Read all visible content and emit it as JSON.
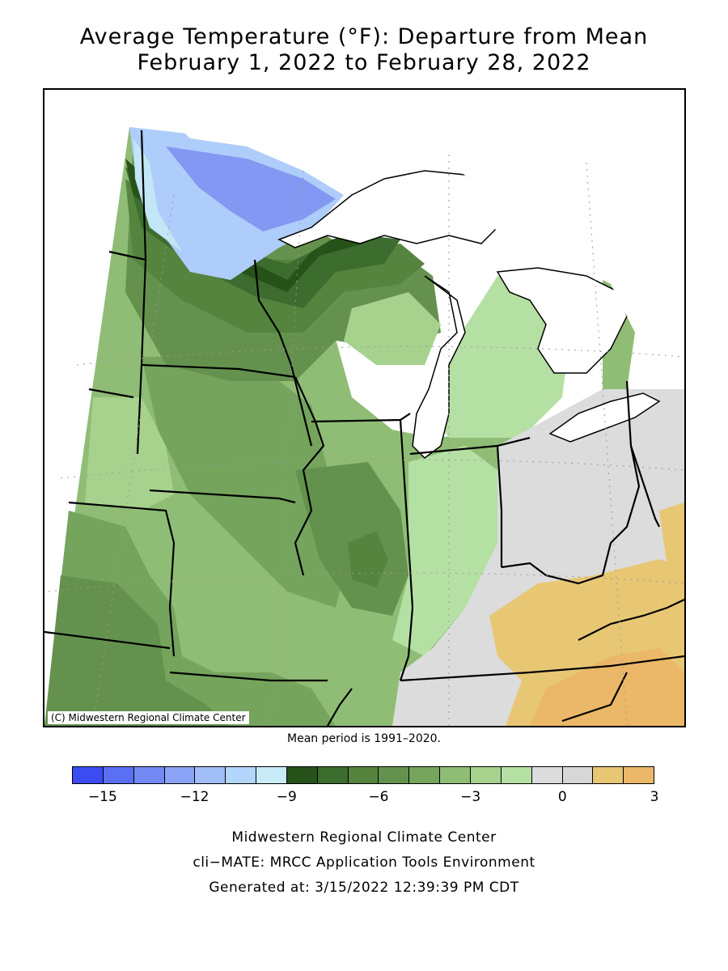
{
  "title": {
    "line1": "Average Temperature (°F): Departure from Mean",
    "line2": "February 1, 2022 to February 28, 2022"
  },
  "map": {
    "copyright": "(C) Midwestern Regional Climate Center",
    "region_colors": {
      "minus_13": "#8298f2",
      "minus_11": "#aecdfa",
      "minus_10": "#c3e6f6",
      "minus_8": "#27521a",
      "minus_7": "#3c6d2f",
      "minus_6": "#55843f",
      "minus_5": "#64924e",
      "minus_4": "#75a45d",
      "minus_3": "#8fbd75",
      "minus_2": "#a6d28e",
      "minus_1": "#b5e0a3",
      "zero": "#dcdcdc",
      "plus_1": "#e8c774",
      "plus_2": "#ebb768",
      "water": "#ffffff"
    }
  },
  "mean_period": "Mean period is 1991–2020.",
  "legend": {
    "colors": [
      "#3b4cf2",
      "#5a6ff4",
      "#7289f4",
      "#8ba3f5",
      "#a2bef7",
      "#b4d5fa",
      "#c9ebf8",
      "#27521a",
      "#3c6d2f",
      "#55843f",
      "#64924e",
      "#75a45d",
      "#8fbd75",
      "#a6d28e",
      "#b5e0a3",
      "#dcdcdc",
      "#d7d7d7",
      "#e8c774",
      "#ebb768"
    ],
    "ticks": [
      {
        "label": "−15",
        "value": -15
      },
      {
        "label": "−12",
        "value": -12
      },
      {
        "label": "−9",
        "value": -9
      },
      {
        "label": "−6",
        "value": -6
      },
      {
        "label": "−3",
        "value": -3
      },
      {
        "label": "0",
        "value": 0
      },
      {
        "label": "3",
        "value": 3
      }
    ],
    "min": -16,
    "max": 3
  },
  "footer": {
    "org": "Midwestern Regional Climate Center",
    "tool": "cli−MATE: MRCC Application Tools Environment",
    "generated": "Generated at: 3/15/2022 12:39:39 PM CDT"
  }
}
